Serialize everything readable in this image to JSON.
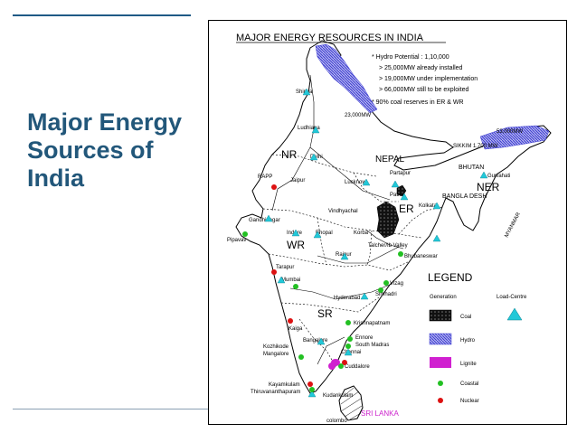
{
  "slide": {
    "title_lines": [
      "Major Energy",
      "Sources of",
      "India"
    ]
  },
  "map": {
    "title": "MAJOR ENERGY RESOURCES IN INDIA",
    "notes": [
      "* Hydro Potential : 1,10,000",
      "> 25,000MW already installed",
      "> 19,000MW under implementation",
      "> 66,000MW still to be exploited",
      "* 90% coal reserves in ER & WR"
    ],
    "hydro_labels": [
      "23,000MW",
      "53,000MW"
    ],
    "regions": [
      "NR",
      "WR",
      "SR",
      "ER",
      "NER"
    ],
    "countries": [
      "NEPAL",
      "BHUTAN",
      "BANGLA DESH",
      "MYANMAR",
      "SRI LANKA"
    ],
    "places": {
      "shimla": "Shimla",
      "ludhiana": "Ludhiana",
      "delhi": "Delhi",
      "rapp": "RAPP",
      "jaipur": "Jaipur",
      "lucknow": "Lucknow",
      "partapur": "Partapur",
      "patna": "Patna",
      "sikkim": "SIKKIM\n1,700 MW",
      "guwahati": "Guwahati",
      "kolkata": "Kolkata",
      "gandhinagar": "Gandhinagar",
      "pipavav": "Pipavav",
      "vindhyachal": "Vindhyachal",
      "indore": "Indore",
      "bhopal": "Bhopal",
      "korba": "Korba",
      "raipur": "Raipur",
      "talcher": "Talcher/Ib Valley",
      "bhubaneswar": "Bhubaneswar",
      "tarapur": "Tarapur",
      "mumbai": "Mumbai",
      "vizag": "Vizag",
      "simhadri": "Simhadri",
      "hyderabad": "Hyderabad",
      "krishnapatnam": "Krishnapatnam",
      "kaiga": "Kaiga",
      "bangalore": "Bangalore",
      "ennore": "Ennore",
      "south_madras": "South Madras",
      "chennai": "Chennai",
      "kozhikode": "Kozhikode",
      "mangalore": "Mangalore",
      "cuddalore": "Cuddalore",
      "kayamkulam": "Kayamkulam",
      "thiruvananthapuram": "Thiruvananthapuram",
      "kudankulam": "Kudankulam",
      "colombo": "colombo"
    },
    "legend": {
      "title": "LEGEND",
      "generation": "Generation",
      "load_centre": "Load-Centre",
      "items": [
        "Coal",
        "Hydro",
        "Lignite",
        "Coastal",
        "Nuclear"
      ]
    },
    "colors": {
      "coal": "#111111",
      "hydro": "#3a3ad0",
      "lignite": "#d020d0",
      "coastal": "#22c022",
      "nuclear": "#dd1111",
      "load_centre": "#22c8d8",
      "title_text": "#22577a",
      "sri_lanka_text": "#cc22cc"
    }
  }
}
